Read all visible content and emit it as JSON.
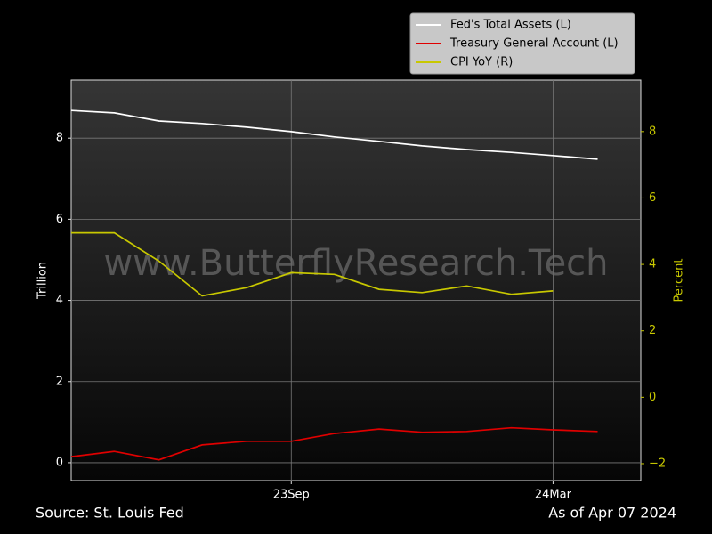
{
  "chart_data": {
    "type": "line",
    "ylabel": "Trillion",
    "y2label": "Percent",
    "watermark": "www.ButterflyResearch.Tech",
    "source": "Source: St. Louis Fed",
    "asof": "As of Apr 07 2024",
    "x": [
      "2023-04",
      "2023-05",
      "2023-06",
      "2023-07",
      "2023-08",
      "2023-09",
      "2023-10",
      "2023-11",
      "2023-12",
      "2024-01",
      "2024-02",
      "2024-03",
      "2024-04"
    ],
    "xlim": [
      "2023-04",
      "2024-05"
    ],
    "xticks": [
      {
        "value": "2023-09",
        "label": "23Sep"
      },
      {
        "value": "2024-03",
        "label": "24Mar"
      }
    ],
    "ylim": [
      -0.44,
      9.43
    ],
    "yticks": [
      0,
      2,
      4,
      6,
      8
    ],
    "y2lim": [
      -2.51,
      9.55
    ],
    "y2ticks": [
      {
        "value": -2,
        "label": "−2"
      },
      0,
      2,
      4,
      6,
      8
    ],
    "grid": true,
    "legend": "upper right",
    "series": [
      {
        "name": "Fed's Total Assets (L)",
        "color": "#ffffff",
        "values": [
          8.68,
          8.62,
          8.42,
          8.36,
          8.27,
          8.16,
          8.03,
          7.92,
          7.81,
          7.72,
          7.65,
          7.57,
          7.48
        ]
      },
      {
        "name": "Treasury General Account (L)",
        "color": "#e00000",
        "values": [
          0.15,
          0.28,
          0.07,
          0.44,
          0.53,
          0.53,
          0.72,
          0.83,
          0.75,
          0.77,
          0.86,
          0.81,
          0.77
        ]
      },
      {
        "name": "CPI YoY (R)",
        "color": "#c8c800",
        "axis": "y2",
        "values": [
          4.95,
          4.95,
          4.1,
          3.05,
          3.3,
          3.75,
          3.7,
          3.25,
          3.15,
          3.35,
          3.1,
          3.2,
          null
        ]
      }
    ]
  }
}
